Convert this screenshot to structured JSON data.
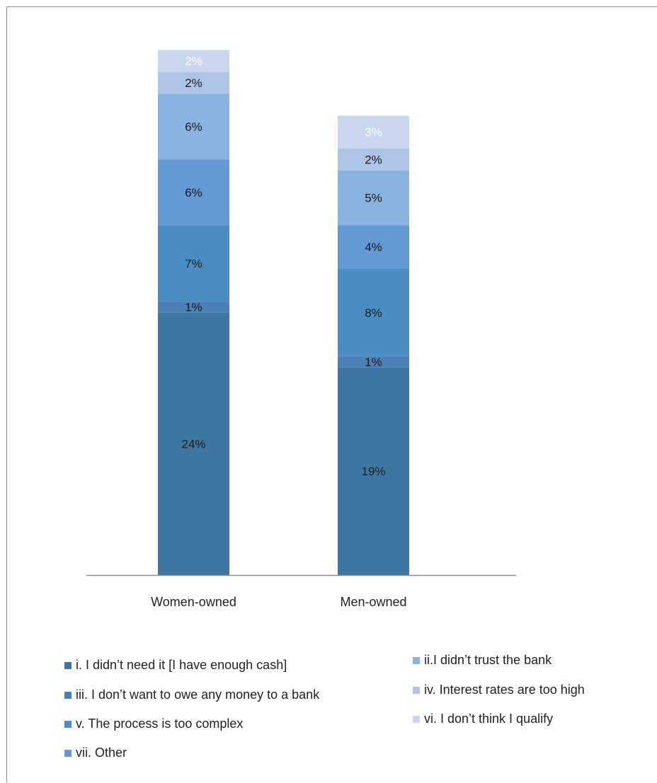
{
  "chart_data": {
    "type": "bar",
    "stacked": true,
    "categories": [
      "Women-owned",
      "Men-owned"
    ],
    "series": [
      {
        "name": "i. I didn’t need it [I have enough cash]",
        "values": [
          24,
          19
        ],
        "labels": [
          "24%",
          "19%"
        ],
        "color": "#3f77a3"
      },
      {
        "name": "iii. I don’t want to owe any money to a bank",
        "values": [
          1,
          1
        ],
        "labels": [
          "1%",
          "1%"
        ],
        "color": "#4d80b6"
      },
      {
        "name": "v. The process is too complex",
        "values": [
          7,
          8
        ],
        "labels": [
          "7%",
          "8%"
        ],
        "color": "#4a8dc3"
      },
      {
        "name": "vii. Other",
        "values": [
          6,
          4
        ],
        "labels": [
          "6%",
          "4%"
        ],
        "color": "#6399d4"
      },
      {
        "name": "ii.I didn’t trust the bank",
        "values": [
          6,
          5
        ],
        "labels": [
          "6%",
          "5%"
        ],
        "color": "#89b3e0"
      },
      {
        "name": "iv. Interest rates are too high",
        "values": [
          2,
          2
        ],
        "labels": [
          "2%",
          "2%"
        ],
        "color": "#aec4e6"
      },
      {
        "name": "vi. I don’t think I qualify",
        "values": [
          2,
          3
        ],
        "labels": [
          "2%",
          "3%"
        ],
        "color": "#c8d6ee"
      }
    ],
    "legend_order": [
      0,
      4,
      1,
      5,
      2,
      6,
      3
    ],
    "legend_position": "bottom",
    "grid": false,
    "ylim": [
      0,
      48.5
    ],
    "title": "",
    "xlabel": "",
    "ylabel": ""
  }
}
